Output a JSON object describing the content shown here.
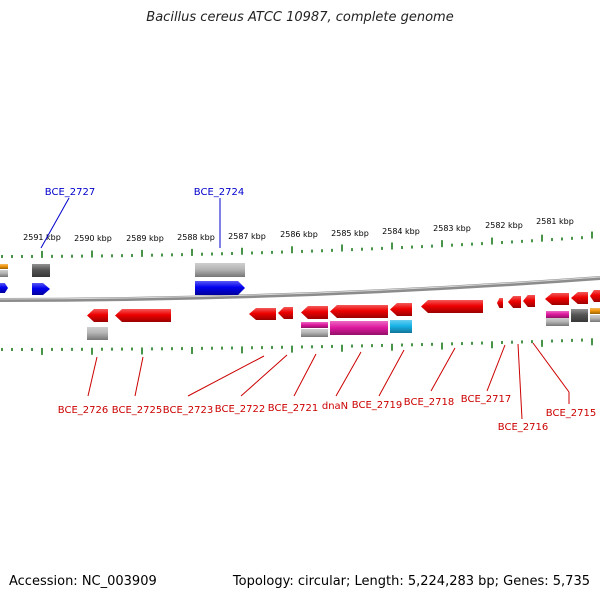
{
  "title": "Bacillus cereus ATCC 10987, complete genome",
  "footer": {
    "accession": "Accession: NC_003909",
    "topology": "Topology: circular; Length: 5,224,283 bp; Genes: 5,735"
  },
  "colors": {
    "forward_label": "#0000cc",
    "reverse_label": "#cc0000",
    "tick": "#1a7a1a",
    "backbone": "#8c8c8c",
    "red": "#ee0000",
    "blue": "#0000ee",
    "gray": "#b5b5b5",
    "darkgray": "#555555",
    "pink": "#e01aa0",
    "cyan": "#18b4e8",
    "orange": "#f0960a"
  },
  "tick_labels": [
    "2591 kbp",
    "2590 kbp",
    "2589 kbp",
    "2588 kbp",
    "2587 kbp",
    "2586 kbp",
    "2585 kbp",
    "2584 kbp",
    "2583 kbp",
    "2582 kbp",
    "2581 kbp"
  ],
  "forward_labels": [
    "BCE_2727",
    "BCE_2724"
  ],
  "reverse_labels": [
    "BCE_2726",
    "BCE_2725",
    "BCE_2723",
    "BCE_2722",
    "BCE_2721",
    "dnaN",
    "BCE_2719",
    "BCE_2718",
    "BCE_2717",
    "BCE_2716",
    "BCE_2715"
  ]
}
